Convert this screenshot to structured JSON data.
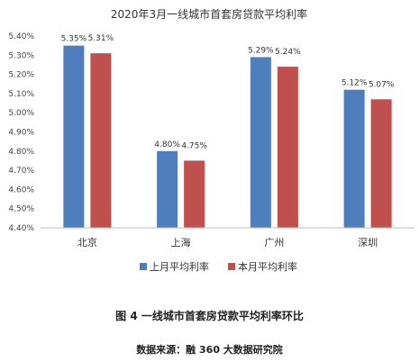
{
  "chart_data": {
    "type": "bar",
    "title": "2020年3月一线城市首套房贷款平均利率",
    "categories": [
      "北京",
      "上海",
      "广州",
      "深圳"
    ],
    "series": [
      {
        "name": "上月平均利率",
        "values": [
          5.35,
          4.8,
          5.29,
          5.12
        ],
        "labels": [
          "5.35%",
          "4.80%",
          "5.29%",
          "5.12%"
        ]
      },
      {
        "name": "本月平均利率",
        "values": [
          5.31,
          4.75,
          5.24,
          5.07
        ],
        "labels": [
          "5.31%",
          "4.75%",
          "5.24%",
          "5.07%"
        ]
      }
    ],
    "ylim": [
      4.4,
      5.4
    ],
    "yticks": [
      "5.40%",
      "5.30%",
      "5.20%",
      "5.10%",
      "5.00%",
      "4.90%",
      "4.80%",
      "4.70%",
      "4.60%",
      "4.50%",
      "4.40%"
    ],
    "colors": [
      "#4f7ebd",
      "#c0504d"
    ],
    "legend_position": "bottom",
    "grid": false
  },
  "caption": "图 4  一线城市首套房贷款平均利率环比",
  "source": "数据来源：融 360 大数据研究院"
}
